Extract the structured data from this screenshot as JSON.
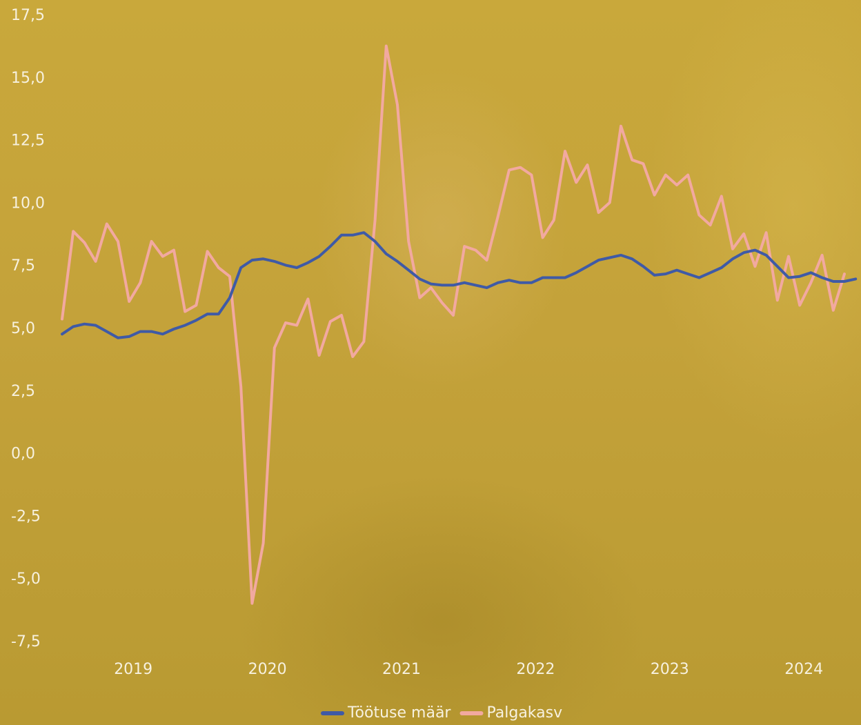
{
  "chart_data": {
    "type": "line",
    "categories": [
      null,
      null,
      null,
      null,
      null,
      null,
      "2019",
      null,
      null,
      null,
      null,
      null,
      null,
      null,
      null,
      null,
      null,
      null,
      "2020",
      null,
      null,
      null,
      null,
      null,
      null,
      null,
      null,
      null,
      null,
      null,
      "2021",
      null,
      null,
      null,
      null,
      null,
      null,
      null,
      null,
      null,
      null,
      null,
      "2022",
      null,
      null,
      null,
      null,
      null,
      null,
      null,
      null,
      null,
      null,
      null,
      "2023",
      null,
      null,
      null,
      null,
      null,
      null,
      null,
      null,
      null,
      null,
      null,
      "2024",
      null,
      null,
      null,
      null,
      null
    ],
    "series": [
      {
        "name": "Töötuse määr",
        "color": "#3f5aa6",
        "values": [
          4.8,
          5.1,
          5.2,
          5.15,
          4.9,
          4.65,
          4.7,
          4.9,
          4.9,
          4.8,
          5.0,
          5.15,
          5.35,
          5.6,
          5.6,
          6.25,
          7.45,
          7.75,
          7.8,
          7.7,
          7.55,
          7.45,
          7.65,
          7.9,
          8.3,
          8.75,
          8.75,
          8.85,
          8.5,
          8.0,
          7.7,
          7.35,
          7.0,
          6.8,
          6.75,
          6.75,
          6.85,
          6.75,
          6.65,
          6.85,
          6.95,
          6.85,
          6.85,
          7.05,
          7.05,
          7.05,
          7.25,
          7.5,
          7.75,
          7.85,
          7.95,
          7.8,
          7.5,
          7.15,
          7.2,
          7.35,
          7.2,
          7.05,
          7.25,
          7.45,
          7.8,
          8.05,
          8.15,
          7.95,
          7.5,
          7.05,
          7.1,
          7.25,
          7.05,
          6.9,
          6.9,
          7.0
        ]
      },
      {
        "name": "Palgakasv",
        "color": "#f2a9a0",
        "values": [
          5.4,
          8.9,
          8.45,
          7.7,
          9.2,
          8.5,
          6.1,
          6.85,
          8.5,
          7.9,
          8.15,
          5.7,
          5.95,
          8.1,
          7.45,
          7.1,
          2.7,
          -5.95,
          -3.55,
          4.25,
          5.25,
          5.15,
          6.2,
          3.95,
          5.3,
          5.55,
          3.9,
          4.5,
          9.35,
          16.3,
          13.95,
          8.5,
          6.25,
          6.65,
          6.05,
          5.55,
          8.3,
          8.15,
          7.75,
          9.5,
          11.35,
          11.45,
          11.15,
          8.65,
          9.35,
          12.1,
          10.85,
          11.55,
          9.65,
          10.05,
          13.1,
          11.75,
          11.6,
          10.35,
          11.15,
          10.75,
          11.15,
          9.55,
          9.15,
          10.3,
          8.2,
          8.8,
          7.5,
          8.85,
          6.15,
          7.9,
          5.95,
          6.85,
          7.95,
          5.75,
          7.2,
          null
        ]
      }
    ],
    "ylim": [
      -7.5,
      17.5
    ],
    "yticks": [
      {
        "value": 17.5,
        "label": "17,5"
      },
      {
        "value": 15,
        "label": "15,0"
      },
      {
        "value": 12.5,
        "label": "12,5"
      },
      {
        "value": 10,
        "label": "10,0"
      },
      {
        "value": 7.5,
        "label": "7,5"
      },
      {
        "value": 5,
        "label": "5,0"
      },
      {
        "value": 2.5,
        "label": "2,5"
      },
      {
        "value": 0,
        "label": "0,0"
      },
      {
        "value": -2.5,
        "label": "-2,5"
      },
      {
        "value": -5,
        "label": "-5,0"
      },
      {
        "value": -7.5,
        "label": "-7,5"
      }
    ],
    "grid": false,
    "legend": "bottom"
  }
}
